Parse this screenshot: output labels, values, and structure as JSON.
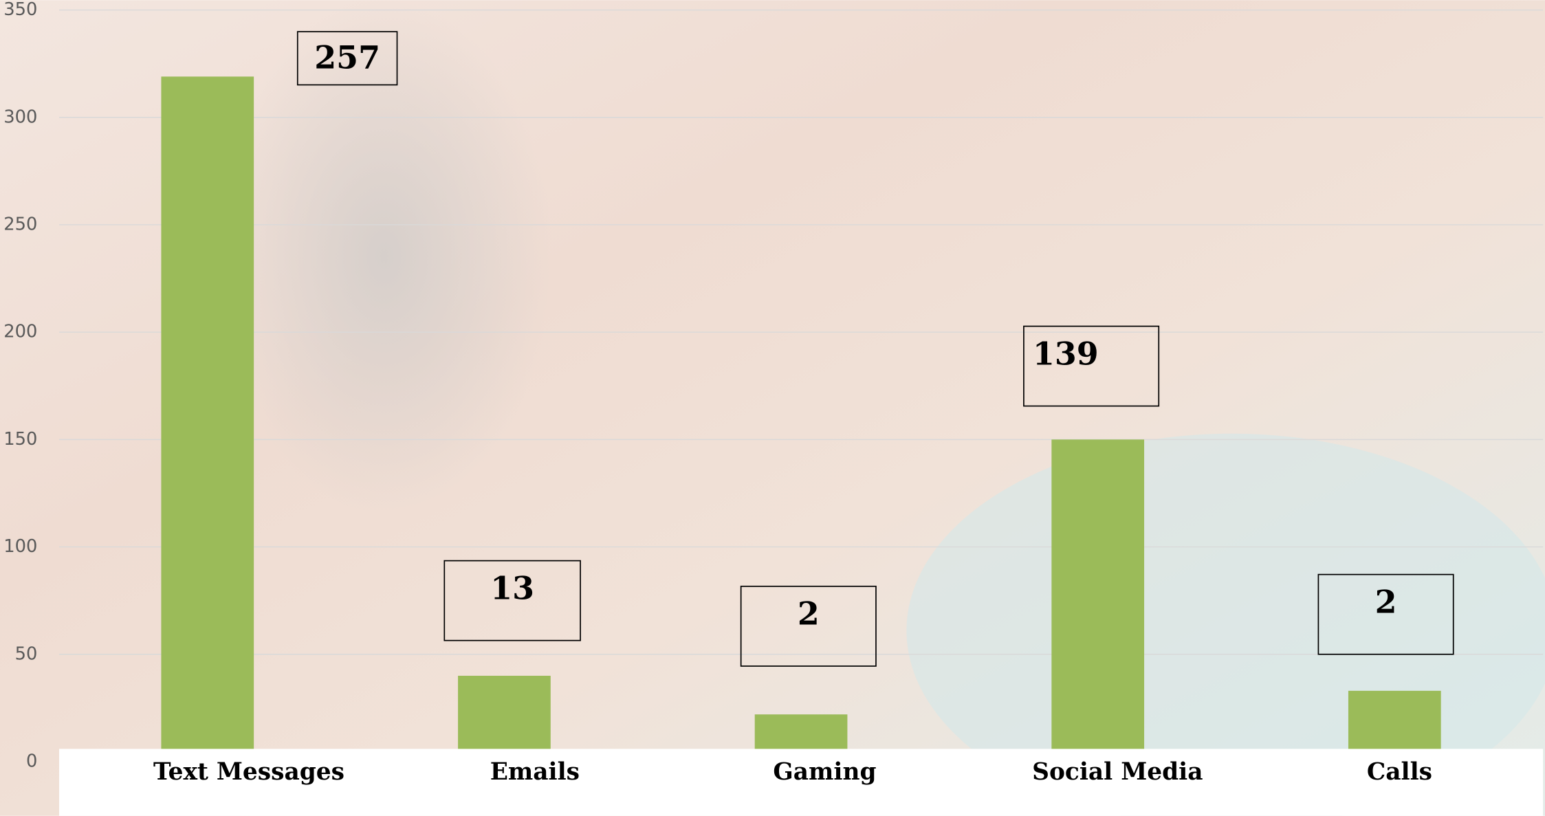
{
  "chart_data": {
    "type": "bar",
    "categories": [
      "Text Messages",
      "Emails",
      "Gaming",
      "Social Media",
      "Calls"
    ],
    "values": [
      319,
      40,
      22,
      150,
      33
    ],
    "color": "#9bbb59",
    "annotations": [
      257,
      13,
      2,
      139,
      2
    ],
    "ylim": [
      0,
      350
    ],
    "yticks": [
      0,
      50,
      100,
      150,
      200,
      250,
      300,
      350
    ],
    "grid": true
  }
}
